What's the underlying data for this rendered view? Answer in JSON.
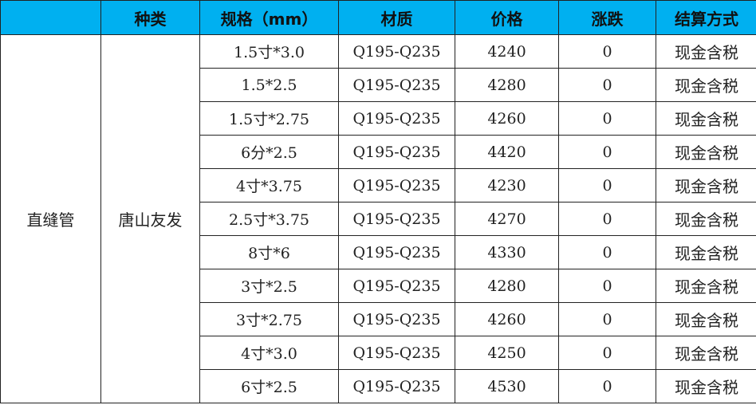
{
  "header": {
    "col0": "",
    "col1": "种类",
    "col2": "规格（mm）",
    "col3": "材质",
    "col4": "价格",
    "col5": "涨跌",
    "col6": "结算方式"
  },
  "category": "直缝管",
  "producer": "唐山友发",
  "header_color": "#00b0f0",
  "rows": [
    {
      "spec": "1.5寸*3.0",
      "material": "Q195-Q235",
      "price": "4240",
      "change": "0",
      "settlement": "现金含税"
    },
    {
      "spec": "1.5*2.5",
      "material": "Q195-Q235",
      "price": "4280",
      "change": "0",
      "settlement": "现金含税"
    },
    {
      "spec": "1.5寸*2.75",
      "material": "Q195-Q235",
      "price": "4260",
      "change": "0",
      "settlement": "现金含税"
    },
    {
      "spec": "6分*2.5",
      "material": "Q195-Q235",
      "price": "4420",
      "change": "0",
      "settlement": "现金含税"
    },
    {
      "spec": "4寸*3.75",
      "material": "Q195-Q235",
      "price": "4230",
      "change": "0",
      "settlement": "现金含税"
    },
    {
      "spec": "2.5寸*3.75",
      "material": "Q195-Q235",
      "price": "4270",
      "change": "0",
      "settlement": "现金含税"
    },
    {
      "spec": "8寸*6",
      "material": "Q195-Q235",
      "price": "4330",
      "change": "0",
      "settlement": "现金含税"
    },
    {
      "spec": "3寸*2.5",
      "material": "Q195-Q235",
      "price": "4280",
      "change": "0",
      "settlement": "现金含税"
    },
    {
      "spec": "3寸*2.75",
      "material": "Q195-Q235",
      "price": "4260",
      "change": "0",
      "settlement": "现金含税"
    },
    {
      "spec": "4寸*3.0",
      "material": "Q195-Q235",
      "price": "4250",
      "change": "0",
      "settlement": "现金含税"
    },
    {
      "spec": "6寸*2.5",
      "material": "Q195-Q235",
      "price": "4530",
      "change": "0",
      "settlement": "现金含税"
    }
  ]
}
